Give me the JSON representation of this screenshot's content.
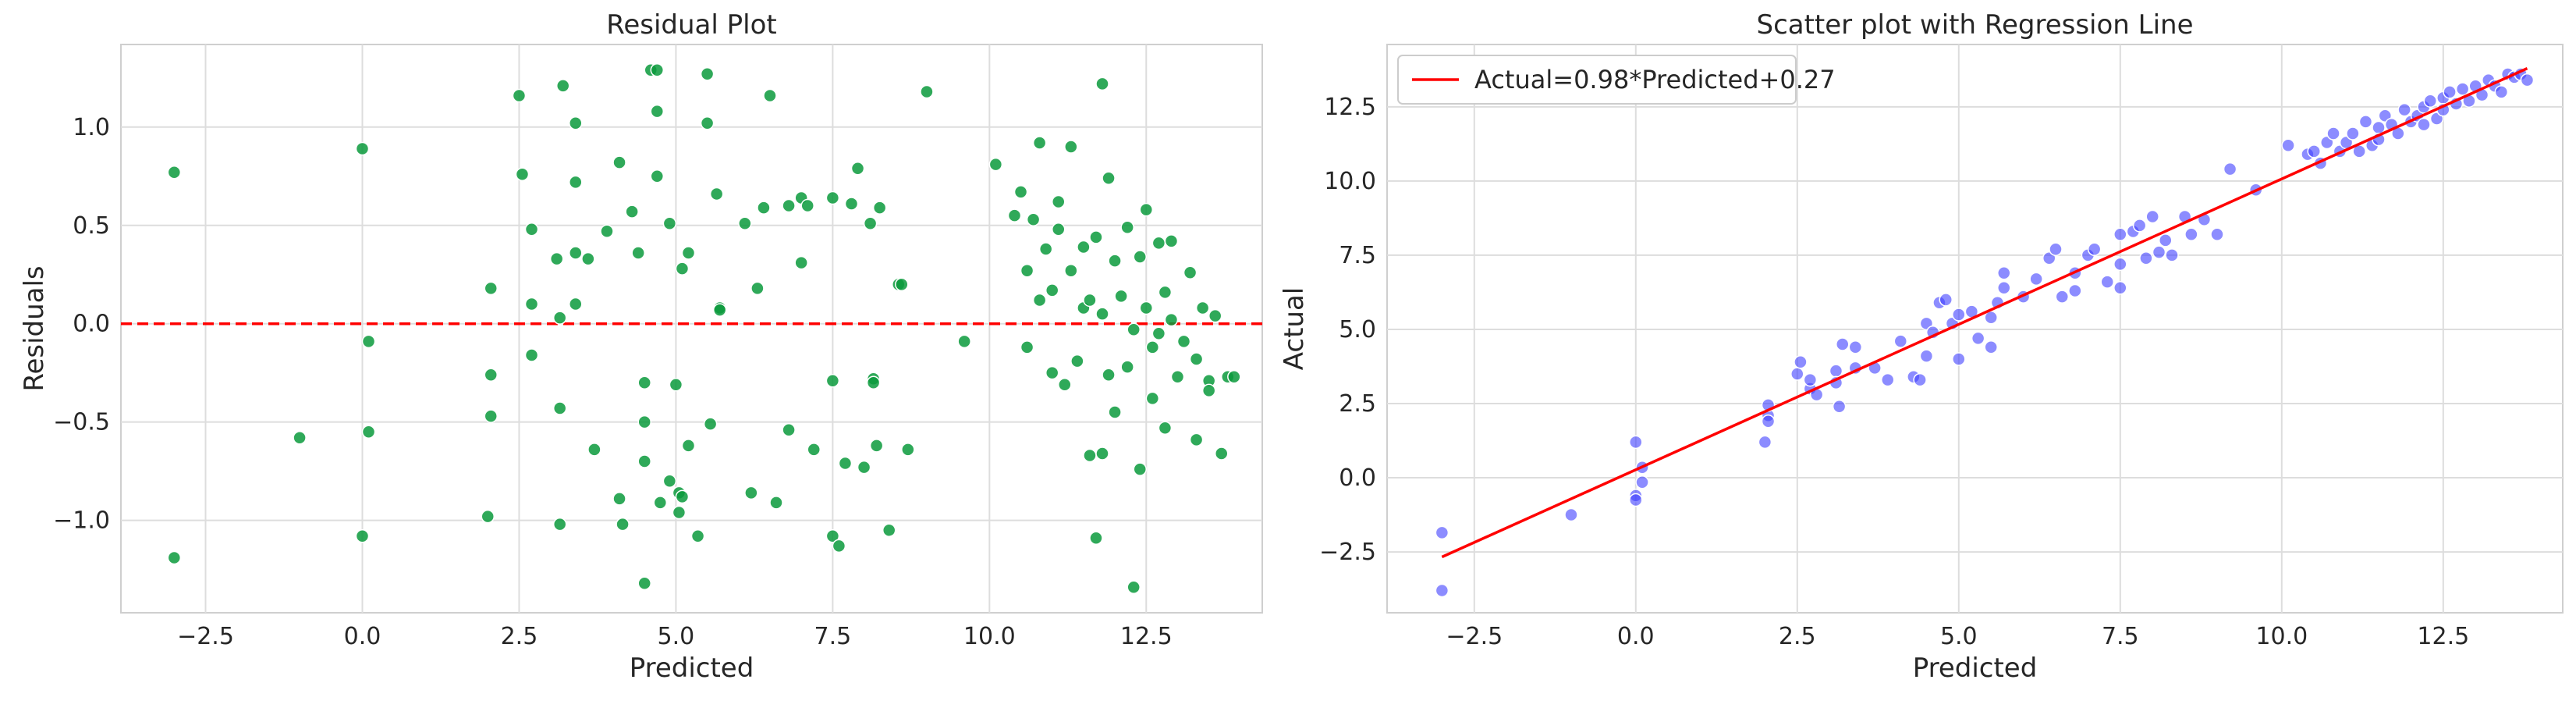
{
  "figure": {
    "background": "#ffffff",
    "grid_color": "#dddddd",
    "spine_color": "#cfcfcf"
  },
  "chart_data": [
    {
      "type": "scatter",
      "title": "Residual Plot",
      "xlabel": "Predicted",
      "ylabel": "Residuals",
      "xlim": [
        -3.85,
        14.35
      ],
      "ylim": [
        -1.47,
        1.42
      ],
      "xticks": [
        -2.5,
        0.0,
        2.5,
        5.0,
        7.5,
        10.0,
        12.5
      ],
      "xtick_labels": [
        "−2.5",
        "0.0",
        "2.5",
        "5.0",
        "7.5",
        "10.0",
        "12.5"
      ],
      "yticks": [
        -1.0,
        -0.5,
        0.0,
        0.5,
        1.0
      ],
      "ytick_labels": [
        "−1.0",
        "−0.5",
        "0.0",
        "0.5",
        "1.0"
      ],
      "grid": true,
      "point_color": "#0a9a3c",
      "reference_line": {
        "y": 0.0,
        "color": "#ff0000",
        "style": "dashed"
      },
      "points": [
        [
          -3.0,
          0.77
        ],
        [
          -3.0,
          -1.19
        ],
        [
          -1.0,
          -0.58
        ],
        [
          0.0,
          0.89
        ],
        [
          0.0,
          -1.08
        ],
        [
          0.1,
          -0.09
        ],
        [
          0.1,
          -0.55
        ],
        [
          2.0,
          -0.98
        ],
        [
          2.05,
          0.18
        ],
        [
          2.05,
          -0.26
        ],
        [
          2.05,
          -0.47
        ],
        [
          2.5,
          1.16
        ],
        [
          2.55,
          0.76
        ],
        [
          2.7,
          0.48
        ],
        [
          2.7,
          0.1
        ],
        [
          2.7,
          -0.16
        ],
        [
          3.1,
          0.33
        ],
        [
          3.15,
          0.03
        ],
        [
          3.15,
          -0.43
        ],
        [
          3.15,
          -1.02
        ],
        [
          3.2,
          1.21
        ],
        [
          3.4,
          1.02
        ],
        [
          3.4,
          0.72
        ],
        [
          3.4,
          0.36
        ],
        [
          3.4,
          0.1
        ],
        [
          3.6,
          0.33
        ],
        [
          3.7,
          -0.64
        ],
        [
          3.9,
          0.47
        ],
        [
          4.1,
          0.82
        ],
        [
          4.1,
          -0.89
        ],
        [
          4.15,
          -1.02
        ],
        [
          4.3,
          0.57
        ],
        [
          4.4,
          0.36
        ],
        [
          4.5,
          -0.3
        ],
        [
          4.5,
          -0.5
        ],
        [
          4.5,
          -0.7
        ],
        [
          4.5,
          -1.32
        ],
        [
          4.6,
          1.29
        ],
        [
          4.7,
          1.29
        ],
        [
          4.7,
          1.08
        ],
        [
          4.7,
          0.75
        ],
        [
          4.75,
          -0.91
        ],
        [
          4.9,
          -0.8
        ],
        [
          4.9,
          0.51
        ],
        [
          5.0,
          -0.31
        ],
        [
          5.05,
          -0.96
        ],
        [
          5.05,
          -0.86
        ],
        [
          5.1,
          -0.88
        ],
        [
          5.1,
          0.28
        ],
        [
          5.2,
          0.36
        ],
        [
          5.2,
          -0.62
        ],
        [
          5.35,
          -1.08
        ],
        [
          5.5,
          1.27
        ],
        [
          5.5,
          1.02
        ],
        [
          5.55,
          -0.51
        ],
        [
          5.65,
          0.66
        ],
        [
          5.7,
          0.08
        ],
        [
          5.7,
          0.07
        ],
        [
          6.1,
          0.51
        ],
        [
          6.2,
          -0.86
        ],
        [
          6.3,
          0.18
        ],
        [
          6.4,
          0.59
        ],
        [
          6.5,
          1.16
        ],
        [
          6.6,
          -0.91
        ],
        [
          6.8,
          0.6
        ],
        [
          6.8,
          -0.54
        ],
        [
          7.0,
          0.64
        ],
        [
          7.0,
          0.31
        ],
        [
          7.1,
          0.6
        ],
        [
          7.2,
          -0.64
        ],
        [
          7.5,
          0.64
        ],
        [
          7.5,
          -0.29
        ],
        [
          7.5,
          -1.08
        ],
        [
          7.6,
          -1.13
        ],
        [
          7.7,
          -0.71
        ],
        [
          7.8,
          0.61
        ],
        [
          7.9,
          0.79
        ],
        [
          8.0,
          -0.73
        ],
        [
          8.1,
          0.51
        ],
        [
          8.15,
          -0.28
        ],
        [
          8.15,
          -0.3
        ],
        [
          8.2,
          -0.62
        ],
        [
          8.25,
          0.59
        ],
        [
          8.4,
          -1.05
        ],
        [
          8.55,
          0.2
        ],
        [
          8.6,
          0.2
        ],
        [
          8.7,
          -0.64
        ],
        [
          9.0,
          1.18
        ],
        [
          9.6,
          -0.09
        ],
        [
          10.1,
          0.81
        ],
        [
          10.4,
          0.55
        ],
        [
          10.5,
          0.67
        ],
        [
          10.6,
          0.27
        ],
        [
          10.6,
          -0.12
        ],
        [
          10.7,
          0.53
        ],
        [
          10.8,
          0.92
        ],
        [
          10.8,
          0.12
        ],
        [
          10.9,
          0.38
        ],
        [
          11.0,
          0.17
        ],
        [
          11.0,
          -0.25
        ],
        [
          11.1,
          0.48
        ],
        [
          11.1,
          0.62
        ],
        [
          11.2,
          -0.31
        ],
        [
          11.3,
          0.9
        ],
        [
          11.3,
          0.27
        ],
        [
          11.4,
          -0.19
        ],
        [
          11.5,
          0.39
        ],
        [
          11.5,
          0.08
        ],
        [
          11.6,
          -0.67
        ],
        [
          11.6,
          0.12
        ],
        [
          11.7,
          -1.09
        ],
        [
          11.7,
          0.44
        ],
        [
          11.8,
          1.22
        ],
        [
          11.8,
          -0.66
        ],
        [
          11.8,
          0.05
        ],
        [
          11.9,
          0.74
        ],
        [
          11.9,
          -0.26
        ],
        [
          12.0,
          0.32
        ],
        [
          12.0,
          -0.45
        ],
        [
          12.1,
          0.14
        ],
        [
          12.2,
          0.49
        ],
        [
          12.2,
          -0.22
        ],
        [
          12.3,
          -1.34
        ],
        [
          12.3,
          -0.03
        ],
        [
          12.4,
          0.34
        ],
        [
          12.4,
          -0.74
        ],
        [
          12.5,
          0.58
        ],
        [
          12.5,
          0.08
        ],
        [
          12.6,
          -0.38
        ],
        [
          12.6,
          -0.12
        ],
        [
          12.7,
          0.41
        ],
        [
          12.7,
          -0.05
        ],
        [
          12.8,
          0.16
        ],
        [
          12.8,
          -0.53
        ],
        [
          12.9,
          0.02
        ],
        [
          12.9,
          0.42
        ],
        [
          13.0,
          -0.27
        ],
        [
          13.1,
          -0.09
        ],
        [
          13.2,
          0.26
        ],
        [
          13.3,
          -0.18
        ],
        [
          13.3,
          -0.59
        ],
        [
          13.4,
          0.08
        ],
        [
          13.5,
          -0.29
        ],
        [
          13.5,
          -0.34
        ],
        [
          13.6,
          0.04
        ],
        [
          13.7,
          -0.66
        ],
        [
          13.8,
          -0.27
        ],
        [
          13.9,
          -0.27
        ]
      ]
    },
    {
      "type": "scatter",
      "title": "Scatter plot with Regression Line",
      "xlabel": "Predicted",
      "ylabel": "Actual",
      "xlim": [
        -3.85,
        14.35
      ],
      "ylim": [
        -4.55,
        14.6
      ],
      "xticks": [
        -2.5,
        0.0,
        2.5,
        5.0,
        7.5,
        10.0,
        12.5
      ],
      "xtick_labels": [
        "−2.5",
        "0.0",
        "2.5",
        "5.0",
        "7.5",
        "10.0",
        "12.5"
      ],
      "yticks": [
        -2.5,
        0.0,
        2.5,
        5.0,
        7.5,
        10.0,
        12.5
      ],
      "ytick_labels": [
        "−2.5",
        "0.0",
        "2.5",
        "5.0",
        "7.5",
        "10.0",
        "12.5"
      ],
      "grid": true,
      "point_color": "#3f3fff",
      "regression_line": {
        "slope": 0.98,
        "intercept": 0.27,
        "x_range": [
          -3.0,
          13.8
        ],
        "color": "#ff0000"
      },
      "legend": {
        "placement": "top-left",
        "entries": [
          "Actual=0.98*Predicted+0.27"
        ]
      },
      "points": [
        [
          -3.0,
          -1.85
        ],
        [
          -3.0,
          -3.8
        ],
        [
          -1.0,
          -1.25
        ],
        [
          0.0,
          1.2
        ],
        [
          0.0,
          -0.6
        ],
        [
          0.0,
          -0.75
        ],
        [
          0.1,
          0.35
        ],
        [
          0.1,
          -0.15
        ],
        [
          2.0,
          1.2
        ],
        [
          2.05,
          2.1
        ],
        [
          2.05,
          1.9
        ],
        [
          2.05,
          2.45
        ],
        [
          2.5,
          3.5
        ],
        [
          2.55,
          3.9
        ],
        [
          2.7,
          3.0
        ],
        [
          2.7,
          3.3
        ],
        [
          2.8,
          2.8
        ],
        [
          3.1,
          3.6
        ],
        [
          3.1,
          3.2
        ],
        [
          3.15,
          2.4
        ],
        [
          3.2,
          4.5
        ],
        [
          3.4,
          3.7
        ],
        [
          3.4,
          4.4
        ],
        [
          3.7,
          3.7
        ],
        [
          3.9,
          3.3
        ],
        [
          4.1,
          4.6
        ],
        [
          4.3,
          3.4
        ],
        [
          4.4,
          3.3
        ],
        [
          4.5,
          5.2
        ],
        [
          4.5,
          4.1
        ],
        [
          4.6,
          4.9
        ],
        [
          4.7,
          5.9
        ],
        [
          4.8,
          6.0
        ],
        [
          4.9,
          5.2
        ],
        [
          5.0,
          4.0
        ],
        [
          5.0,
          5.5
        ],
        [
          5.2,
          5.6
        ],
        [
          5.3,
          4.7
        ],
        [
          5.5,
          5.4
        ],
        [
          5.5,
          4.4
        ],
        [
          5.6,
          5.9
        ],
        [
          5.7,
          6.4
        ],
        [
          5.7,
          6.9
        ],
        [
          6.0,
          6.1
        ],
        [
          6.2,
          6.7
        ],
        [
          6.4,
          7.4
        ],
        [
          6.5,
          7.7
        ],
        [
          6.6,
          6.1
        ],
        [
          6.8,
          6.3
        ],
        [
          6.8,
          6.9
        ],
        [
          7.0,
          7.5
        ],
        [
          7.1,
          7.7
        ],
        [
          7.3,
          6.6
        ],
        [
          7.5,
          8.2
        ],
        [
          7.5,
          6.4
        ],
        [
          7.5,
          7.2
        ],
        [
          7.7,
          8.3
        ],
        [
          7.8,
          8.5
        ],
        [
          7.9,
          7.4
        ],
        [
          8.0,
          8.8
        ],
        [
          8.1,
          7.6
        ],
        [
          8.2,
          8.0
        ],
        [
          8.3,
          7.5
        ],
        [
          8.5,
          8.8
        ],
        [
          8.6,
          8.2
        ],
        [
          8.8,
          8.7
        ],
        [
          9.0,
          8.2
        ],
        [
          9.2,
          10.4
        ],
        [
          9.6,
          9.7
        ],
        [
          10.1,
          11.2
        ],
        [
          10.4,
          10.9
        ],
        [
          10.5,
          11.0
        ],
        [
          10.6,
          10.6
        ],
        [
          10.7,
          11.3
        ],
        [
          10.8,
          11.6
        ],
        [
          10.9,
          11.0
        ],
        [
          11.0,
          11.3
        ],
        [
          11.1,
          11.6
        ],
        [
          11.2,
          11.0
        ],
        [
          11.3,
          12.0
        ],
        [
          11.4,
          11.2
        ],
        [
          11.5,
          11.8
        ],
        [
          11.5,
          11.4
        ],
        [
          11.6,
          12.2
        ],
        [
          11.7,
          11.9
        ],
        [
          11.8,
          11.6
        ],
        [
          11.9,
          12.4
        ],
        [
          12.0,
          12.0
        ],
        [
          12.1,
          12.2
        ],
        [
          12.2,
          12.5
        ],
        [
          12.2,
          11.9
        ],
        [
          12.3,
          12.7
        ],
        [
          12.4,
          12.1
        ],
        [
          12.5,
          12.8
        ],
        [
          12.5,
          12.4
        ],
        [
          12.6,
          13.0
        ],
        [
          12.7,
          12.6
        ],
        [
          12.8,
          13.1
        ],
        [
          12.9,
          12.7
        ],
        [
          13.0,
          13.2
        ],
        [
          13.1,
          12.9
        ],
        [
          13.2,
          13.4
        ],
        [
          13.3,
          13.2
        ],
        [
          13.4,
          13.0
        ],
        [
          13.5,
          13.6
        ],
        [
          13.6,
          13.5
        ],
        [
          13.7,
          13.6
        ],
        [
          13.8,
          13.4
        ]
      ]
    }
  ]
}
